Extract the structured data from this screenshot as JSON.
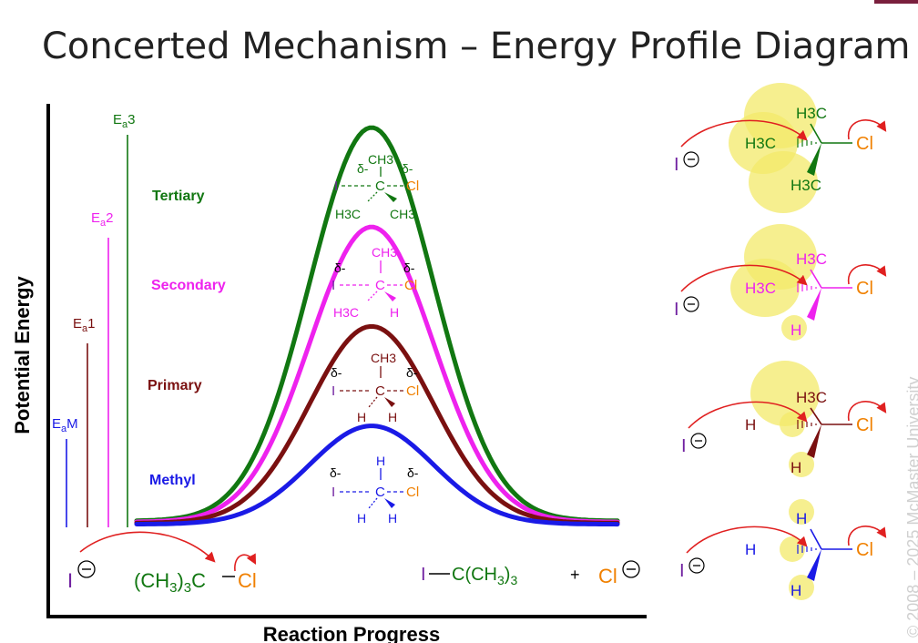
{
  "title": "Concerted Mechanism – Energy Profile Diagram",
  "axes": {
    "y_label": "Potential Energy",
    "x_label": "Reaction Progress"
  },
  "colors": {
    "tertiary": "#117711",
    "secondary": "#ee22ee",
    "primary": "#7a1010",
    "methyl": "#1a1ae6",
    "iodine": "#7020a0",
    "chlorine": "#f08000",
    "arrow": "#e02020",
    "highlight": "#f3e96a"
  },
  "activation_energies": [
    {
      "label_main": "E",
      "label_sub": "a",
      "label_tail": "M",
      "color": "#1a1ae6"
    },
    {
      "label_main": "E",
      "label_sub": "a",
      "label_tail": "1",
      "color": "#7a1010"
    },
    {
      "label_main": "E",
      "label_sub": "a",
      "label_tail": "2",
      "color": "#ee22ee"
    },
    {
      "label_main": "E",
      "label_sub": "a",
      "label_tail": "3",
      "color": "#117711"
    }
  ],
  "curves": [
    {
      "name": "Tertiary",
      "color": "#117711",
      "relative_height": 1.0
    },
    {
      "name": "Secondary",
      "color": "#ee22ee",
      "relative_height": 0.75
    },
    {
      "name": "Primary",
      "color": "#7a1010",
      "relative_height": 0.5
    },
    {
      "name": "Methyl",
      "color": "#1a1ae6",
      "relative_height": 0.25
    }
  ],
  "transition_states": {
    "delta": "δ-",
    "iodine": "I",
    "chlorine": "Cl",
    "carbon": "C",
    "tertiary": {
      "top": "CH3",
      "left": "H3C",
      "right": "CH3"
    },
    "secondary": {
      "top": "CH3",
      "left": "H3C",
      "right": "H"
    },
    "primary": {
      "top": "CH3",
      "left": "H",
      "right": "H"
    },
    "methyl": {
      "top": "H",
      "left": "H",
      "right": "H"
    }
  },
  "reactants": {
    "nucleophile": "I",
    "substrate_left": "(CH3)3C",
    "bond": "–",
    "leaving": "Cl"
  },
  "products": {
    "product": "I—C(CH3)3",
    "plus": "+",
    "chloride": "Cl"
  },
  "side_structures": [
    {
      "name": "tertiary",
      "color": "#117711",
      "subs": [
        "H3C",
        "H3C",
        "H3C"
      ]
    },
    {
      "name": "secondary",
      "color": "#ee22ee",
      "subs": [
        "H3C",
        "H3C",
        "H"
      ]
    },
    {
      "name": "primary",
      "color": "#7a1010",
      "subs": [
        "H3C",
        "H",
        "H"
      ]
    },
    {
      "name": "methyl",
      "color": "#1a1ae6",
      "subs": [
        "H",
        "H",
        "H"
      ]
    }
  ],
  "watermark": "© 2008 – 2025 McMaster University"
}
